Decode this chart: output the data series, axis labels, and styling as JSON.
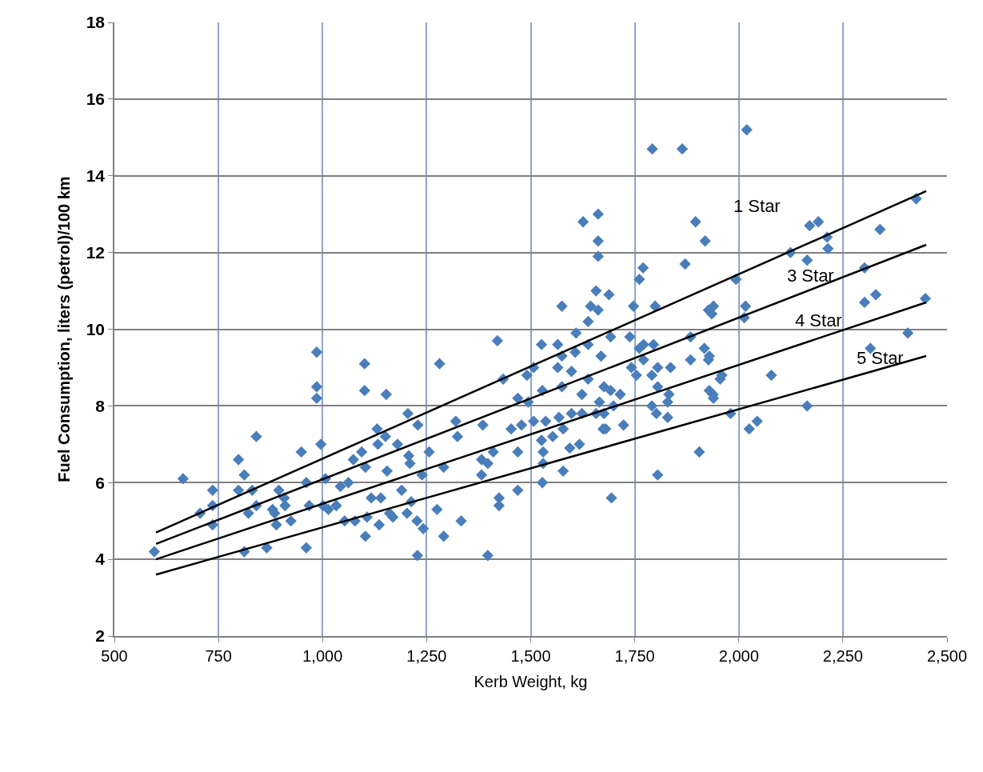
{
  "chart_data": {
    "type": "scatter",
    "xlabel": "Kerb Weight, kg",
    "ylabel": "Fuel Consumption, liters (petrol)/100 km",
    "xlim": [
      500,
      2500
    ],
    "xticks": [
      {
        "value": 500,
        "label": "500"
      },
      {
        "value": 750,
        "label": "750"
      },
      {
        "value": 1000,
        "label": "1,000"
      },
      {
        "value": 1250,
        "label": "1,250"
      },
      {
        "value": 1500,
        "label": "1,500"
      },
      {
        "value": 1750,
        "label": "1,750"
      },
      {
        "value": 2000,
        "label": "2,000"
      },
      {
        "value": 2250,
        "label": "2,250"
      },
      {
        "value": 2500,
        "label": "2,500"
      }
    ],
    "ylim": [
      2,
      18
    ],
    "yticks": [
      2,
      4,
      6,
      8,
      10,
      12,
      14,
      16,
      18
    ],
    "grid": true,
    "legend": false,
    "series": [
      {
        "color": "#4a7ebb",
        "marker": "diamond",
        "x": [
          596,
          665,
          736,
          706,
          736,
          736,
          798,
          812,
          798,
          822,
          812,
          831,
          841,
          841,
          866,
          880,
          885,
          889,
          895,
          910,
          924,
          908,
          949,
          961,
          961,
          968,
          986,
          986,
          986,
          996,
          1007,
          1001,
          1014,
          1033,
          1043,
          1053,
          1062,
          1074,
          1078,
          1094,
          1101,
          1101,
          1103,
          1103,
          1107,
          1117,
          1131,
          1133,
          1140,
          1136,
          1151,
          1153,
          1155,
          1161,
          1169,
          1180,
          1190,
          1203,
          1205,
          1207,
          1210,
          1213,
          1227,
          1228,
          1229,
          1239,
          1242,
          1256,
          1281,
          1275,
          1291,
          1291,
          1320,
          1324,
          1333,
          1385,
          1382,
          1397,
          1382,
          1410,
          1397,
          1420,
          1424,
          1424,
          1434,
          1453,
          1469,
          1469,
          1469,
          1478,
          1491,
          1494,
          1507,
          1507,
          1526,
          1528,
          1526,
          1530,
          1530,
          1528,
          1536,
          1553,
          1565,
          1565,
          1568,
          1578,
          1578,
          1575,
          1575,
          1594,
          1598,
          1598,
          1609,
          1607,
          1617,
          1623,
          1623,
          1638,
          1638,
          1638,
          1657,
          1665,
          1669,
          1674,
          1676,
          1676,
          1680,
          1692,
          1692,
          1694,
          1699,
          1715,
          1723,
          1738,
          1742,
          1754,
          1761,
          1771,
          1771,
          1791,
          1795,
          1791,
          1805,
          1802,
          1805,
          1805,
          1829,
          1832,
          1836,
          1829,
          1884,
          1884,
          1905,
          1917,
          1927,
          1927,
          1929,
          1939,
          1955,
          1792,
          1864,
          2019,
          1626,
          1662,
          1662,
          1662,
          1657,
          1688,
          1644,
          1662,
          1575,
          1747,
          1761,
          1770,
          1799,
          1871,
          1896,
          1919,
          1939,
          1935,
          1993,
          2016,
          2124,
          2170,
          2191,
          2212,
          2214,
          2164,
          2302,
          2339,
          2426,
          2302,
          2329,
          2448,
          2406,
          2316,
          2078,
          2164,
          2025,
          2044,
          1980,
          1959,
          1938,
          2013,
          1929
        ],
        "values": [
          4.2,
          6.1,
          5.8,
          5.2,
          5.4,
          4.9,
          6.6,
          6.2,
          5.8,
          5.2,
          4.2,
          5.8,
          7.2,
          5.4,
          4.3,
          5.3,
          5.2,
          4.9,
          5.8,
          5.4,
          5.0,
          5.6,
          6.8,
          6.0,
          4.3,
          5.4,
          9.4,
          8.5,
          8.2,
          7.0,
          6.1,
          5.4,
          5.3,
          5.4,
          5.9,
          5.0,
          6.0,
          6.6,
          5.0,
          6.8,
          8.4,
          9.1,
          6.4,
          4.6,
          5.1,
          5.6,
          7.4,
          7.0,
          5.6,
          4.9,
          7.2,
          8.3,
          6.3,
          5.2,
          5.1,
          7.0,
          5.8,
          5.2,
          7.8,
          6.7,
          6.5,
          5.5,
          5.0,
          4.1,
          7.5,
          6.2,
          4.8,
          6.8,
          9.1,
          5.3,
          6.4,
          4.6,
          7.6,
          7.2,
          5.0,
          7.5,
          6.6,
          6.5,
          6.2,
          6.8,
          4.1,
          9.7,
          5.6,
          5.4,
          8.7,
          7.4,
          8.2,
          6.8,
          5.8,
          7.5,
          8.8,
          8.1,
          9.0,
          7.6,
          9.6,
          8.4,
          7.1,
          6.8,
          6.5,
          6.0,
          7.6,
          7.2,
          9.6,
          9.0,
          7.7,
          7.4,
          6.3,
          9.3,
          8.5,
          6.9,
          8.9,
          7.8,
          9.9,
          9.4,
          7.0,
          8.3,
          7.8,
          10.2,
          9.6,
          8.7,
          7.8,
          8.1,
          9.3,
          7.4,
          8.5,
          7.8,
          7.4,
          9.8,
          8.4,
          5.6,
          8.0,
          8.3,
          7.5,
          9.8,
          9.0,
          8.8,
          9.5,
          9.6,
          9.2,
          8.0,
          9.6,
          8.8,
          9.0,
          7.8,
          6.2,
          8.5,
          7.7,
          8.3,
          9.0,
          8.1,
          9.8,
          9.2,
          6.8,
          9.5,
          9.2,
          10.5,
          8.4,
          8.2,
          8.7,
          14.7,
          14.7,
          15.2,
          12.8,
          13.0,
          12.3,
          11.9,
          11.0,
          10.9,
          10.6,
          10.5,
          10.6,
          10.6,
          11.3,
          11.6,
          10.6,
          11.7,
          12.8,
          12.3,
          10.6,
          10.4,
          11.3,
          10.6,
          12.0,
          12.7,
          12.8,
          12.4,
          12.1,
          11.8,
          11.6,
          12.6,
          13.4,
          10.7,
          10.9,
          10.8,
          9.9,
          9.5,
          8.8,
          8.0,
          7.4,
          7.6,
          7.8,
          8.8,
          8.3,
          10.3,
          9.3
        ]
      },
      {
        "type": "line",
        "name": "1 Star",
        "color": "#000000",
        "marker": "none",
        "line_style": "solid",
        "x": [
          600,
          2450
        ],
        "values": [
          4.7,
          13.6
        ]
      },
      {
        "type": "line",
        "name": "3 Star",
        "color": "#000000",
        "marker": "none",
        "line_style": "solid",
        "x": [
          600,
          2450
        ],
        "values": [
          4.4,
          12.2
        ]
      },
      {
        "type": "line",
        "name": "4 Star",
        "color": "#000000",
        "marker": "none",
        "line_style": "solid",
        "x": [
          600,
          2450
        ],
        "values": [
          4.0,
          10.7
        ]
      },
      {
        "type": "line",
        "name": "5 Star",
        "color": "#000000",
        "marker": "none",
        "line_style": "solid",
        "x": [
          600,
          2450
        ],
        "values": [
          3.6,
          9.3
        ]
      }
    ]
  }
}
